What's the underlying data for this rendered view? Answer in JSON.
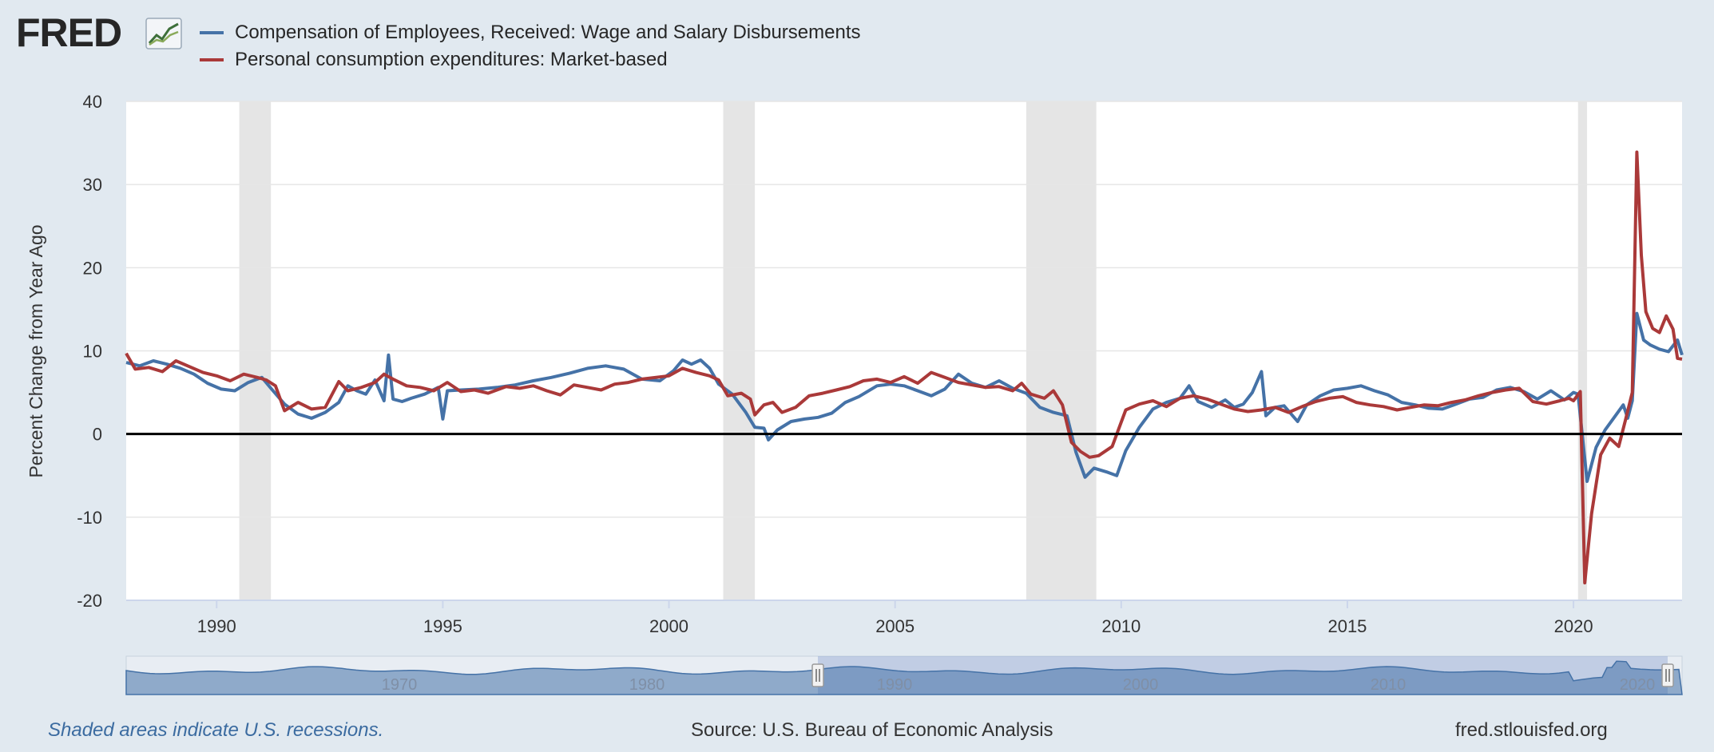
{
  "brand": {
    "logo_text": "FRED",
    "logo_mark": "chart-line-icon"
  },
  "legend": [
    {
      "label": "Compensation of Employees, Received: Wage and Salary Disbursements",
      "color": "#4572a7"
    },
    {
      "label": "Personal consumption expenditures: Market-based",
      "color": "#aa3939"
    }
  ],
  "footer": {
    "note": "Shaded areas indicate U.S. recessions.",
    "source": "Source: U.S. Bureau of Economic Analysis",
    "url": "fred.stlouisfed.org"
  },
  "chart_data": {
    "type": "line",
    "title": "",
    "xlabel": "",
    "ylabel": "Percent Change from Year Ago",
    "xlim": [
      1988.0,
      2022.4
    ],
    "ylim": [
      -20,
      40
    ],
    "yticks": [
      -20,
      -10,
      0,
      10,
      20,
      30,
      40
    ],
    "xticks": [
      1990,
      1995,
      2000,
      2005,
      2010,
      2015,
      2020
    ],
    "grid": true,
    "zero_line": true,
    "recessions": [
      [
        1990.5,
        1991.2
      ],
      [
        2001.2,
        2001.9
      ],
      [
        2007.9,
        2009.45
      ],
      [
        2020.1,
        2020.3
      ]
    ],
    "navigator": {
      "range_start": 1988.0,
      "range_end": 2022.4,
      "ticks": [
        "1970",
        "1980",
        "1990",
        "2000",
        "2010",
        "2020"
      ]
    },
    "series": [
      {
        "name": "Compensation of Employees, Received: Wage and Salary Disbursements",
        "color": "#4572a7",
        "points": [
          [
            1988.0,
            8.6
          ],
          [
            1988.3,
            8.2
          ],
          [
            1988.6,
            8.8
          ],
          [
            1988.9,
            8.4
          ],
          [
            1989.2,
            7.9
          ],
          [
            1989.5,
            7.2
          ],
          [
            1989.8,
            6.1
          ],
          [
            1990.1,
            5.4
          ],
          [
            1990.4,
            5.2
          ],
          [
            1990.7,
            6.2
          ],
          [
            1991.0,
            6.8
          ],
          [
            1991.2,
            5.5
          ],
          [
            1991.5,
            3.6
          ],
          [
            1991.8,
            2.4
          ],
          [
            1992.1,
            1.9
          ],
          [
            1992.4,
            2.6
          ],
          [
            1992.7,
            3.8
          ],
          [
            1992.9,
            5.8
          ],
          [
            1993.1,
            5.2
          ],
          [
            1993.3,
            4.8
          ],
          [
            1993.5,
            6.5
          ],
          [
            1993.7,
            4.0
          ],
          [
            1993.8,
            9.5
          ],
          [
            1993.9,
            4.2
          ],
          [
            1994.1,
            3.9
          ],
          [
            1994.3,
            4.3
          ],
          [
            1994.6,
            4.8
          ],
          [
            1994.9,
            5.6
          ],
          [
            1995.0,
            1.8
          ],
          [
            1995.1,
            5.2
          ],
          [
            1995.4,
            5.3
          ],
          [
            1995.8,
            5.4
          ],
          [
            1996.2,
            5.6
          ],
          [
            1996.6,
            5.9
          ],
          [
            1997.0,
            6.4
          ],
          [
            1997.4,
            6.8
          ],
          [
            1997.8,
            7.3
          ],
          [
            1998.2,
            7.9
          ],
          [
            1998.6,
            8.2
          ],
          [
            1999.0,
            7.8
          ],
          [
            1999.4,
            6.6
          ],
          [
            1999.8,
            6.4
          ],
          [
            2000.1,
            7.6
          ],
          [
            2000.3,
            8.9
          ],
          [
            2000.5,
            8.4
          ],
          [
            2000.7,
            8.9
          ],
          [
            2000.9,
            7.9
          ],
          [
            2001.1,
            6.0
          ],
          [
            2001.4,
            4.8
          ],
          [
            2001.7,
            2.6
          ],
          [
            2001.9,
            0.8
          ],
          [
            2002.1,
            0.7
          ],
          [
            2002.2,
            -0.7
          ],
          [
            2002.4,
            0.5
          ],
          [
            2002.7,
            1.5
          ],
          [
            2003.0,
            1.8
          ],
          [
            2003.3,
            2.0
          ],
          [
            2003.6,
            2.5
          ],
          [
            2003.9,
            3.8
          ],
          [
            2004.2,
            4.5
          ],
          [
            2004.6,
            5.8
          ],
          [
            2004.9,
            6.0
          ],
          [
            2005.2,
            5.8
          ],
          [
            2005.5,
            5.2
          ],
          [
            2005.8,
            4.6
          ],
          [
            2006.1,
            5.4
          ],
          [
            2006.4,
            7.2
          ],
          [
            2006.7,
            6.1
          ],
          [
            2007.0,
            5.6
          ],
          [
            2007.3,
            6.4
          ],
          [
            2007.6,
            5.5
          ],
          [
            2007.9,
            4.9
          ],
          [
            2008.2,
            3.2
          ],
          [
            2008.5,
            2.6
          ],
          [
            2008.8,
            2.2
          ],
          [
            2009.0,
            -2.2
          ],
          [
            2009.2,
            -5.2
          ],
          [
            2009.4,
            -4.1
          ],
          [
            2009.7,
            -4.6
          ],
          [
            2009.9,
            -5.0
          ],
          [
            2010.1,
            -2.0
          ],
          [
            2010.4,
            0.8
          ],
          [
            2010.7,
            3.0
          ],
          [
            2011.0,
            3.8
          ],
          [
            2011.3,
            4.3
          ],
          [
            2011.5,
            5.8
          ],
          [
            2011.7,
            3.9
          ],
          [
            2012.0,
            3.2
          ],
          [
            2012.3,
            4.1
          ],
          [
            2012.5,
            3.2
          ],
          [
            2012.7,
            3.6
          ],
          [
            2012.9,
            5.0
          ],
          [
            2013.1,
            7.5
          ],
          [
            2013.2,
            2.2
          ],
          [
            2013.4,
            3.2
          ],
          [
            2013.6,
            3.4
          ],
          [
            2013.9,
            1.5
          ],
          [
            2014.1,
            3.5
          ],
          [
            2014.4,
            4.6
          ],
          [
            2014.7,
            5.3
          ],
          [
            2015.0,
            5.5
          ],
          [
            2015.3,
            5.8
          ],
          [
            2015.6,
            5.2
          ],
          [
            2015.9,
            4.7
          ],
          [
            2016.2,
            3.8
          ],
          [
            2016.5,
            3.5
          ],
          [
            2016.8,
            3.1
          ],
          [
            2017.1,
            3.0
          ],
          [
            2017.4,
            3.6
          ],
          [
            2017.7,
            4.2
          ],
          [
            2018.0,
            4.4
          ],
          [
            2018.3,
            5.3
          ],
          [
            2018.6,
            5.6
          ],
          [
            2018.9,
            5.1
          ],
          [
            2019.2,
            4.2
          ],
          [
            2019.5,
            5.2
          ],
          [
            2019.8,
            4.1
          ],
          [
            2020.0,
            5.0
          ],
          [
            2020.1,
            4.8
          ],
          [
            2020.3,
            -5.7
          ],
          [
            2020.5,
            -1.6
          ],
          [
            2020.7,
            0.5
          ],
          [
            2020.9,
            2.0
          ],
          [
            2021.1,
            3.5
          ],
          [
            2021.2,
            1.9
          ],
          [
            2021.3,
            4.0
          ],
          [
            2021.4,
            14.5
          ],
          [
            2021.55,
            11.3
          ],
          [
            2021.7,
            10.7
          ],
          [
            2021.9,
            10.2
          ],
          [
            2022.1,
            9.9
          ],
          [
            2022.3,
            11.3
          ],
          [
            2022.4,
            9.5
          ]
        ]
      },
      {
        "name": "Personal consumption expenditures: Market-based",
        "color": "#aa3939",
        "points": [
          [
            1988.0,
            9.7
          ],
          [
            1988.2,
            7.8
          ],
          [
            1988.5,
            8.0
          ],
          [
            1988.8,
            7.5
          ],
          [
            1989.1,
            8.8
          ],
          [
            1989.4,
            8.1
          ],
          [
            1989.7,
            7.4
          ],
          [
            1990.0,
            7.0
          ],
          [
            1990.3,
            6.4
          ],
          [
            1990.6,
            7.2
          ],
          [
            1990.9,
            6.8
          ],
          [
            1991.1,
            6.5
          ],
          [
            1991.3,
            5.8
          ],
          [
            1991.5,
            2.8
          ],
          [
            1991.8,
            3.8
          ],
          [
            1992.1,
            3.0
          ],
          [
            1992.4,
            3.2
          ],
          [
            1992.7,
            6.3
          ],
          [
            1992.9,
            5.2
          ],
          [
            1993.2,
            5.6
          ],
          [
            1993.5,
            6.2
          ],
          [
            1993.7,
            7.2
          ],
          [
            1993.9,
            6.6
          ],
          [
            1994.2,
            5.8
          ],
          [
            1994.5,
            5.6
          ],
          [
            1994.8,
            5.2
          ],
          [
            1995.1,
            6.2
          ],
          [
            1995.4,
            5.1
          ],
          [
            1995.7,
            5.3
          ],
          [
            1996.0,
            4.9
          ],
          [
            1996.4,
            5.7
          ],
          [
            1996.7,
            5.5
          ],
          [
            1997.0,
            5.8
          ],
          [
            1997.3,
            5.2
          ],
          [
            1997.6,
            4.7
          ],
          [
            1997.9,
            5.9
          ],
          [
            1998.2,
            5.6
          ],
          [
            1998.5,
            5.3
          ],
          [
            1998.8,
            6.0
          ],
          [
            1999.1,
            6.2
          ],
          [
            1999.4,
            6.6
          ],
          [
            1999.7,
            6.8
          ],
          [
            2000.0,
            7.0
          ],
          [
            2000.3,
            7.9
          ],
          [
            2000.6,
            7.4
          ],
          [
            2000.9,
            7.0
          ],
          [
            2001.1,
            6.5
          ],
          [
            2001.3,
            4.6
          ],
          [
            2001.6,
            4.9
          ],
          [
            2001.8,
            4.2
          ],
          [
            2001.9,
            2.3
          ],
          [
            2002.1,
            3.5
          ],
          [
            2002.3,
            3.8
          ],
          [
            2002.5,
            2.6
          ],
          [
            2002.8,
            3.2
          ],
          [
            2003.1,
            4.6
          ],
          [
            2003.4,
            4.9
          ],
          [
            2003.7,
            5.3
          ],
          [
            2004.0,
            5.7
          ],
          [
            2004.3,
            6.4
          ],
          [
            2004.6,
            6.6
          ],
          [
            2004.9,
            6.2
          ],
          [
            2005.2,
            6.9
          ],
          [
            2005.5,
            6.1
          ],
          [
            2005.8,
            7.4
          ],
          [
            2006.1,
            6.8
          ],
          [
            2006.4,
            6.2
          ],
          [
            2006.7,
            5.9
          ],
          [
            2007.0,
            5.6
          ],
          [
            2007.3,
            5.7
          ],
          [
            2007.6,
            5.2
          ],
          [
            2007.8,
            6.1
          ],
          [
            2008.0,
            4.8
          ],
          [
            2008.3,
            4.3
          ],
          [
            2008.5,
            5.2
          ],
          [
            2008.7,
            3.5
          ],
          [
            2008.9,
            -1.0
          ],
          [
            2009.1,
            -2.1
          ],
          [
            2009.3,
            -2.8
          ],
          [
            2009.5,
            -2.6
          ],
          [
            2009.8,
            -1.5
          ],
          [
            2010.1,
            2.9
          ],
          [
            2010.4,
            3.6
          ],
          [
            2010.7,
            4.0
          ],
          [
            2011.0,
            3.3
          ],
          [
            2011.3,
            4.3
          ],
          [
            2011.6,
            4.6
          ],
          [
            2011.9,
            4.2
          ],
          [
            2012.2,
            3.6
          ],
          [
            2012.5,
            3.0
          ],
          [
            2012.8,
            2.7
          ],
          [
            2013.1,
            2.9
          ],
          [
            2013.4,
            3.2
          ],
          [
            2013.7,
            2.6
          ],
          [
            2014.0,
            3.3
          ],
          [
            2014.3,
            3.9
          ],
          [
            2014.6,
            4.3
          ],
          [
            2014.9,
            4.5
          ],
          [
            2015.2,
            3.8
          ],
          [
            2015.5,
            3.5
          ],
          [
            2015.8,
            3.3
          ],
          [
            2016.1,
            2.9
          ],
          [
            2016.4,
            3.2
          ],
          [
            2016.7,
            3.5
          ],
          [
            2017.0,
            3.4
          ],
          [
            2017.3,
            3.8
          ],
          [
            2017.6,
            4.1
          ],
          [
            2017.9,
            4.6
          ],
          [
            2018.2,
            5.0
          ],
          [
            2018.5,
            5.3
          ],
          [
            2018.8,
            5.5
          ],
          [
            2019.1,
            3.9
          ],
          [
            2019.4,
            3.6
          ],
          [
            2019.7,
            4.0
          ],
          [
            2019.9,
            4.3
          ],
          [
            2020.0,
            4.0
          ],
          [
            2020.15,
            5.1
          ],
          [
            2020.25,
            -17.9
          ],
          [
            2020.4,
            -9.6
          ],
          [
            2020.6,
            -2.5
          ],
          [
            2020.8,
            -0.5
          ],
          [
            2021.0,
            -1.5
          ],
          [
            2021.15,
            1.7
          ],
          [
            2021.3,
            5.0
          ],
          [
            2021.4,
            33.9
          ],
          [
            2021.5,
            21.5
          ],
          [
            2021.6,
            14.7
          ],
          [
            2021.75,
            12.7
          ],
          [
            2021.9,
            12.2
          ],
          [
            2022.05,
            14.2
          ],
          [
            2022.2,
            12.6
          ],
          [
            2022.3,
            9.1
          ],
          [
            2022.4,
            9.0
          ]
        ]
      }
    ]
  }
}
